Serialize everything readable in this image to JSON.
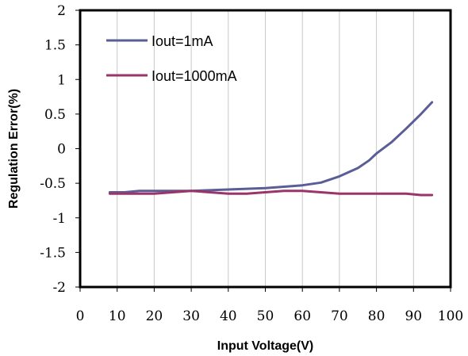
{
  "chart_data": {
    "type": "line",
    "title": "",
    "xlabel": "Input Voltage(V)",
    "ylabel": "Regulation Error(%)",
    "xlim": [
      0,
      100
    ],
    "ylim": [
      -2,
      2
    ],
    "x_ticks": [
      "0",
      "10",
      "20",
      "30",
      "40",
      "50",
      "60",
      "70",
      "80",
      "90",
      "100"
    ],
    "y_ticks": [
      "2",
      "1.5",
      "1",
      "0.5",
      "0",
      "-0.5",
      "-1",
      "-1.5",
      "-2"
    ],
    "grid": "vertical",
    "legend_position": "top-left",
    "series": [
      {
        "name": "Iout=1mA",
        "color": "#5b5e96",
        "x": [
          8,
          12,
          16,
          20,
          25,
          30,
          35,
          40,
          45,
          50,
          55,
          60,
          65,
          70,
          75,
          78,
          80,
          84,
          88,
          92,
          95
        ],
        "y": [
          -0.63,
          -0.63,
          -0.61,
          -0.61,
          -0.61,
          -0.61,
          -0.6,
          -0.59,
          -0.58,
          -0.57,
          -0.55,
          -0.53,
          -0.49,
          -0.4,
          -0.28,
          -0.17,
          -0.07,
          0.09,
          0.29,
          0.5,
          0.67
        ]
      },
      {
        "name": "Iout=1000mA",
        "color": "#9b3468",
        "x": [
          8,
          12,
          16,
          20,
          25,
          30,
          35,
          40,
          45,
          50,
          55,
          60,
          65,
          70,
          75,
          80,
          85,
          88,
          92,
          95
        ],
        "y": [
          -0.65,
          -0.65,
          -0.65,
          -0.65,
          -0.63,
          -0.61,
          -0.63,
          -0.65,
          -0.65,
          -0.63,
          -0.61,
          -0.61,
          -0.63,
          -0.65,
          -0.65,
          -0.65,
          -0.65,
          -0.65,
          -0.67,
          -0.67
        ]
      }
    ]
  }
}
